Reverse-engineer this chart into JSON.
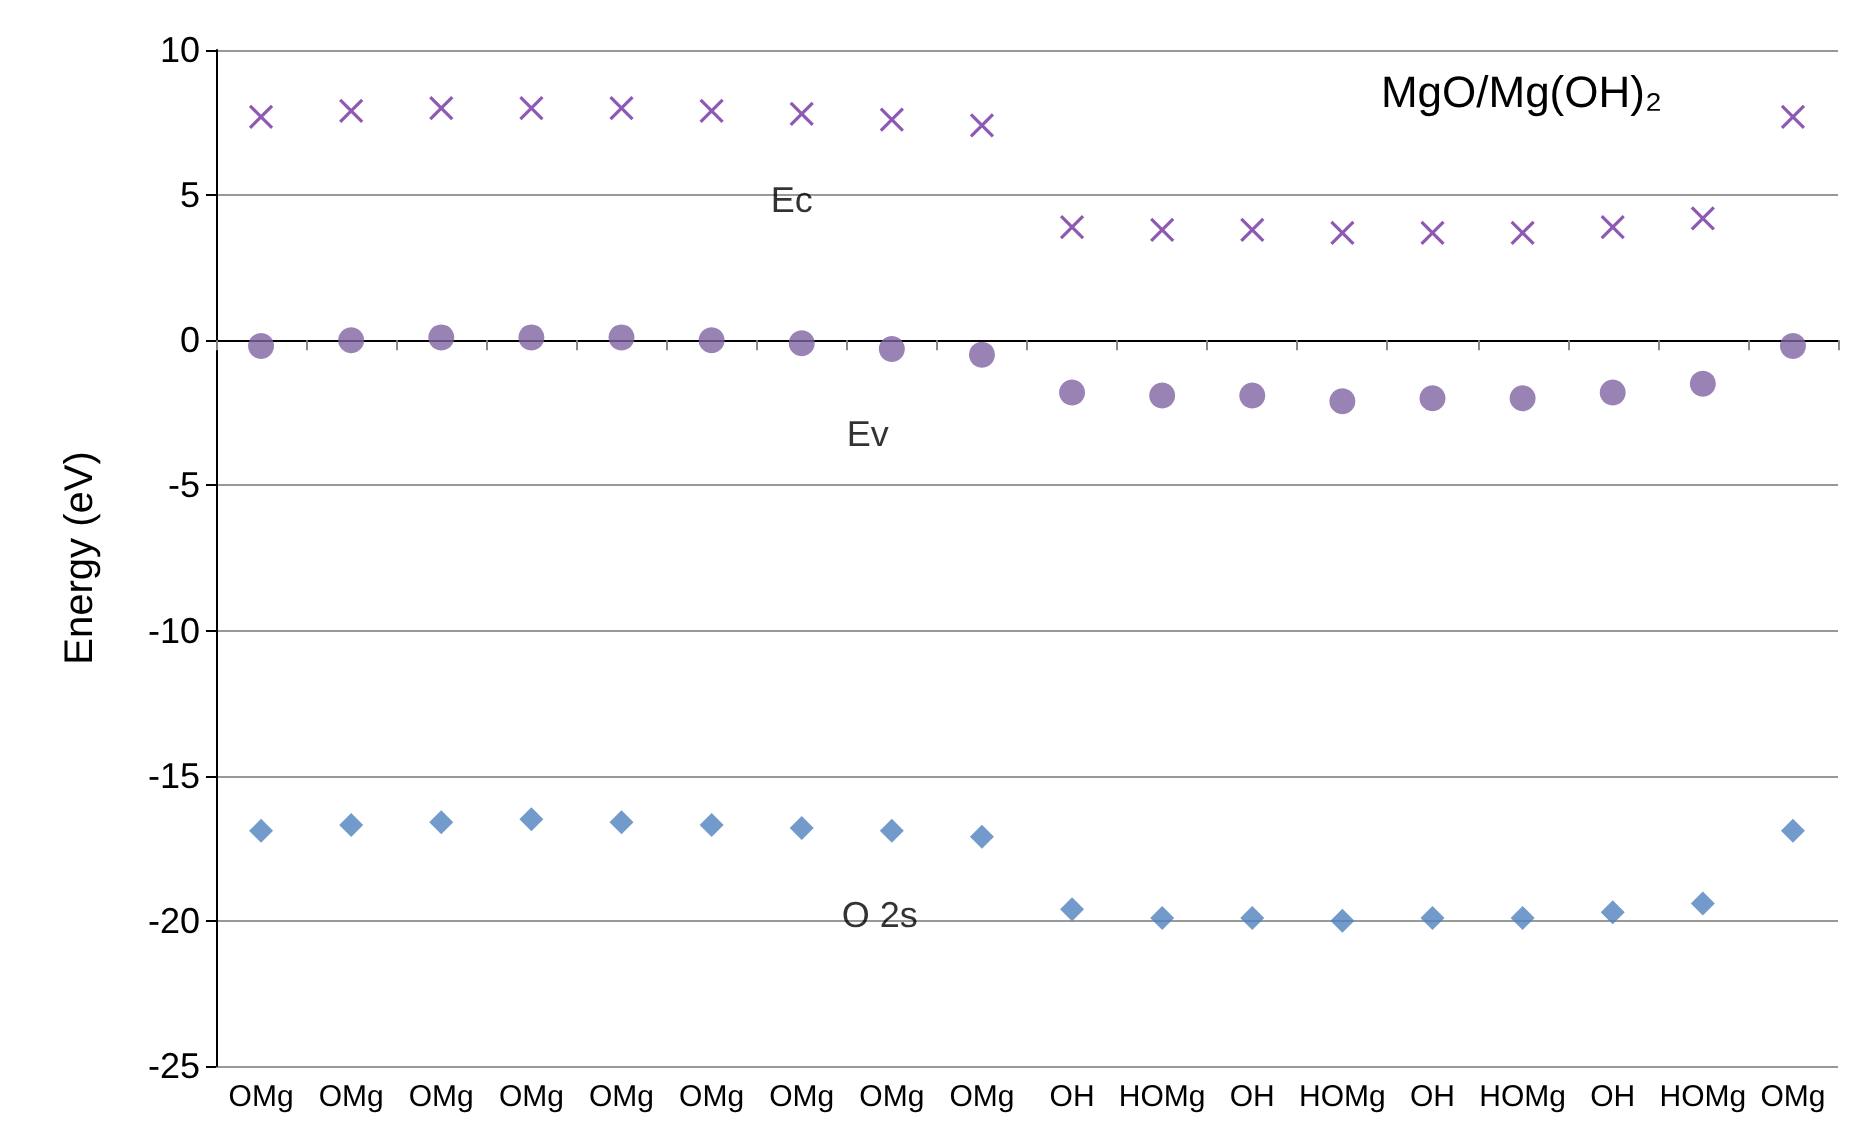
{
  "chart_data": {
    "type": "scatter",
    "title": "MgO/Mg(OH)₂",
    "ylabel": "Energy (eV)",
    "categories": [
      "OMg",
      "OMg",
      "OMg",
      "OMg",
      "OMg",
      "OMg",
      "OMg",
      "OMg",
      "OMg",
      "OH",
      "HOMg",
      "OH",
      "HOMg",
      "OH",
      "HOMg",
      "OH",
      "HOMg",
      "OMg"
    ],
    "series": [
      {
        "name": "Ec",
        "color": "#7030a0",
        "marker": "cross",
        "values": [
          7.7,
          7.9,
          8.0,
          8.0,
          8.0,
          7.9,
          7.8,
          7.6,
          7.4,
          3.9,
          3.8,
          3.8,
          3.7,
          3.7,
          3.7,
          3.9,
          4.2,
          7.7
        ]
      },
      {
        "name": "Ev",
        "color": "#8064a2",
        "marker": "circle",
        "values": [
          -0.2,
          0.0,
          0.1,
          0.1,
          0.1,
          0.0,
          -0.1,
          -0.3,
          -0.5,
          -1.8,
          -1.9,
          -1.9,
          -2.1,
          -2.0,
          -2.0,
          -1.8,
          -1.5,
          -0.2
        ]
      },
      {
        "name": "O 2s",
        "color": "#4f81bd",
        "marker": "diamond",
        "values": [
          -16.9,
          -16.7,
          -16.6,
          -16.5,
          -16.6,
          -16.7,
          -16.8,
          -16.9,
          -17.1,
          -19.6,
          -19.9,
          -19.9,
          -20.0,
          -19.9,
          -19.9,
          -19.7,
          -19.4,
          -16.9
        ]
      }
    ],
    "ylim": [
      -25,
      10
    ],
    "yticks": [
      -25,
      -20,
      -15,
      -10,
      -5,
      0,
      5,
      10
    ],
    "grid": "y",
    "legend": false
  }
}
